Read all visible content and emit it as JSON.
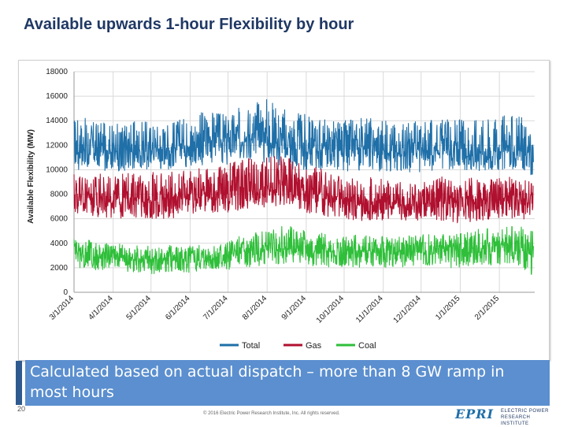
{
  "slide": {
    "title": "Available upwards 1-hour Flexibility by hour",
    "callout": "Calculated based on actual dispatch – more than 8 GW ramp in most hours",
    "page_number": "20",
    "copyright": "© 2016 Electric Power Research Institute, Inc. All rights reserved.",
    "logo_mark": "EPRI",
    "logo_line1": "ELECTRIC POWER",
    "logo_line2": "RESEARCH INSTITUTE"
  },
  "chart_data": {
    "type": "line",
    "title": "",
    "xlabel": "",
    "ylabel": "Available Flexibility (MW)",
    "ylim": [
      0,
      18000
    ],
    "yticks": [
      0,
      2000,
      4000,
      6000,
      8000,
      10000,
      12000,
      14000,
      16000,
      18000
    ],
    "xlim": [
      "2014-03-01",
      "2015-03-01"
    ],
    "xtick_labels": [
      "3/1/2014",
      "4/1/2014",
      "5/1/2014",
      "6/1/2014",
      "7/1/2014",
      "8/1/2014",
      "9/1/2014",
      "10/1/2014",
      "11/1/2014",
      "12/1/2014",
      "1/1/2015",
      "2/1/2015"
    ],
    "grid": true,
    "legend_position": "bottom",
    "series": [
      {
        "name": "Total",
        "color": "#1f6fa8",
        "x": [
          "2014-03-01",
          "2014-03-16",
          "2014-04-01",
          "2014-04-16",
          "2014-05-01",
          "2014-05-16",
          "2014-06-01",
          "2014-06-16",
          "2014-07-01",
          "2014-07-16",
          "2014-08-01",
          "2014-08-16",
          "2014-09-01",
          "2014-09-16",
          "2014-10-01",
          "2014-10-16",
          "2014-11-01",
          "2014-11-16",
          "2014-12-01",
          "2014-12-16",
          "2015-01-01",
          "2015-01-16",
          "2015-02-01",
          "2015-02-16",
          "2015-02-28"
        ],
        "values": [
          12000,
          11800,
          11500,
          11700,
          11600,
          11800,
          12000,
          12500,
          12200,
          12600,
          12400,
          12000,
          12000,
          11800,
          11500,
          11800,
          11500,
          11400,
          11500,
          11600,
          11800,
          11600,
          11700,
          11600,
          11200
        ],
        "range_low": [
          10000,
          10000,
          9800,
          10000,
          10000,
          10000,
          10200,
          10500,
          10200,
          10800,
          10500,
          10000,
          10000,
          10000,
          9800,
          10000,
          9800,
          9800,
          9800,
          9800,
          9800,
          9800,
          10000,
          10000,
          9500
        ],
        "range_high": [
          14500,
          14000,
          13800,
          14000,
          14000,
          14000,
          14500,
          15000,
          14500,
          15500,
          16200,
          15000,
          14500,
          14200,
          14000,
          14500,
          14200,
          14000,
          14000,
          14200,
          14200,
          14500,
          14500,
          14500,
          13500
        ]
      },
      {
        "name": "Gas",
        "color": "#b0102f",
        "x": [
          "2014-03-01",
          "2014-03-16",
          "2014-04-01",
          "2014-04-16",
          "2014-05-01",
          "2014-05-16",
          "2014-06-01",
          "2014-06-16",
          "2014-07-01",
          "2014-07-16",
          "2014-08-01",
          "2014-08-16",
          "2014-09-01",
          "2014-09-16",
          "2014-10-01",
          "2014-10-16",
          "2014-11-01",
          "2014-11-16",
          "2014-12-01",
          "2014-12-16",
          "2015-01-01",
          "2015-01-16",
          "2015-02-01",
          "2015-02-16",
          "2015-02-28"
        ],
        "values": [
          8200,
          7800,
          7500,
          7800,
          7600,
          7800,
          8000,
          8200,
          8300,
          8500,
          8400,
          8800,
          8200,
          7900,
          7600,
          7400,
          7300,
          7200,
          7200,
          7400,
          7300,
          7500,
          7600,
          7500,
          7200
        ],
        "range_low": [
          6500,
          6200,
          6000,
          6000,
          6000,
          6000,
          6200,
          6500,
          6500,
          6800,
          6800,
          7000,
          6500,
          6200,
          6000,
          5800,
          5800,
          5800,
          5800,
          5800,
          5600,
          5800,
          6000,
          6000,
          5800
        ],
        "range_high": [
          10000,
          9800,
          9500,
          9800,
          9800,
          9800,
          10000,
          10200,
          10500,
          11000,
          11000,
          11500,
          10500,
          10000,
          9500,
          9500,
          9200,
          9000,
          9000,
          9500,
          9200,
          9500,
          9500,
          9300,
          9000
        ]
      },
      {
        "name": "Coal",
        "color": "#2fbf3a",
        "x": [
          "2014-03-01",
          "2014-03-16",
          "2014-04-01",
          "2014-04-16",
          "2014-05-01",
          "2014-05-16",
          "2014-06-01",
          "2014-06-16",
          "2014-07-01",
          "2014-07-16",
          "2014-08-01",
          "2014-08-16",
          "2014-09-01",
          "2014-09-16",
          "2014-10-01",
          "2014-10-16",
          "2014-11-01",
          "2014-11-16",
          "2014-12-01",
          "2014-12-16",
          "2015-01-01",
          "2015-01-16",
          "2015-02-01",
          "2015-02-16",
          "2015-02-28"
        ],
        "values": [
          3200,
          3000,
          2900,
          2700,
          2600,
          2800,
          2700,
          2800,
          3000,
          3200,
          3500,
          3600,
          3500,
          3400,
          3300,
          3400,
          3300,
          3300,
          3500,
          3400,
          3500,
          3600,
          3700,
          3800,
          3500
        ],
        "range_low": [
          2000,
          1800,
          1800,
          1600,
          1500,
          1600,
          1600,
          1800,
          1800,
          2000,
          2200,
          2200,
          2200,
          2000,
          2000,
          2000,
          2000,
          2000,
          2200,
          2000,
          2000,
          2200,
          2200,
          2200,
          1000
        ],
        "range_high": [
          4500,
          4200,
          4000,
          3800,
          3800,
          4000,
          3800,
          4000,
          4200,
          4800,
          5000,
          5500,
          5000,
          4800,
          4500,
          4800,
          4600,
          4500,
          4800,
          4800,
          5000,
          5200,
          5200,
          5500,
          5000
        ]
      }
    ]
  }
}
